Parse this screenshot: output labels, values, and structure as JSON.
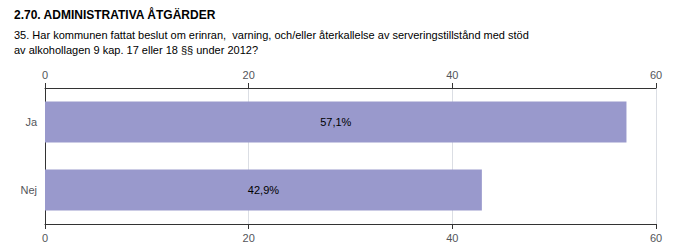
{
  "chart_data": {
    "type": "bar",
    "orientation": "horizontal",
    "title": "2.70. ADMINISTRATIVA ÅTGÄRDER",
    "subtitle": "35. Har kommunen fattat beslut om erinran,  varning, och/eller återkallelse av serveringstillstånd med stöd\nav alkohollagen 9 kap. 17 eller 18 §§ under 2012?",
    "categories": [
      "Nej",
      "Ja"
    ],
    "values": [
      42.9,
      57.1
    ],
    "value_labels": [
      "42,9%",
      "57,1%"
    ],
    "data_labels": true,
    "color": "#9999cc",
    "xlim": [
      0,
      60
    ],
    "xticks": [
      0,
      20,
      40,
      60
    ],
    "grid": true
  }
}
